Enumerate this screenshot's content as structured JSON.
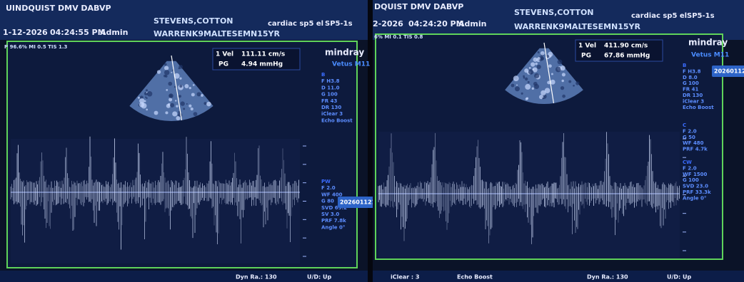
{
  "panels": [
    {
      "header": {
        "clinic": "UINDQUIST DMV DABVP",
        "date": "1-12-2026",
        "time": "04:24:55 PM",
        "user": "Admin",
        "patient": "STEVENS,COTTON",
        "id": "WARRENK9MALTESEMN15YR",
        "preset": "cardiac sp5 el",
        "probe": "SP5-1s",
        "power": "P 96.6% MI 0.5 TIS 1.3"
      },
      "measurement": {
        "label1": "1 Vel",
        "value1": "111.11 cm/s",
        "label2": "PG",
        "value2": "4.94 mmHg"
      },
      "brand": "mindray",
      "model": "Vetus M11",
      "params": [
        [
          "B",
          "F H3.8",
          "D 11.0",
          "G 100",
          "FR 43",
          "DR 130",
          "iClear 3",
          "Echo Boost"
        ],
        [
          "PW",
          "F 2.0",
          "WF 400",
          "G 80",
          "SVD 69.2",
          "SV 3.0",
          "PRF 7.8k",
          "Angle 0°"
        ]
      ],
      "badge": "20260112162",
      "footer": [
        "Dyn Ra.: 130",
        "U/D: Up"
      ]
    },
    {
      "header": {
        "clinic": "DQUIST DMV DABVP",
        "date": "2-2026",
        "time": "04:24:20 PM",
        "user": "Admin",
        "patient": "STEVENS,COTTON",
        "id": "WARRENK9MALTESEMN15YR",
        "preset": "cardiac sp5 el",
        "probe": "SP5-1s",
        "power": "6% MI 0.1 TIS 0.8"
      },
      "measurement": {
        "label1": "1 Vel",
        "value1": "411.90 cm/s",
        "label2": "PG",
        "value2": "67.86 mmHg"
      },
      "brand": "mindray",
      "model": "Vetus M11",
      "params": [
        [
          "B",
          "F H3.8",
          "D 8.0",
          "G 100",
          "FR 41",
          "DR 130",
          "iClear 3",
          "Echo Boost"
        ],
        [
          "C",
          "F 2.0",
          "G 50",
          "WF 480",
          "PRF 4.7k"
        ],
        [
          "CW",
          "F 2.0",
          "WF 1500",
          "G 100",
          "SVD 23.0",
          "PRF 33.3k",
          "Angle 0°"
        ]
      ],
      "badge": "20260112",
      "footer": [
        "iClear : 3",
        "Echo Boost",
        "Dyn Ra.: 130",
        "U/D: Up"
      ]
    }
  ]
}
